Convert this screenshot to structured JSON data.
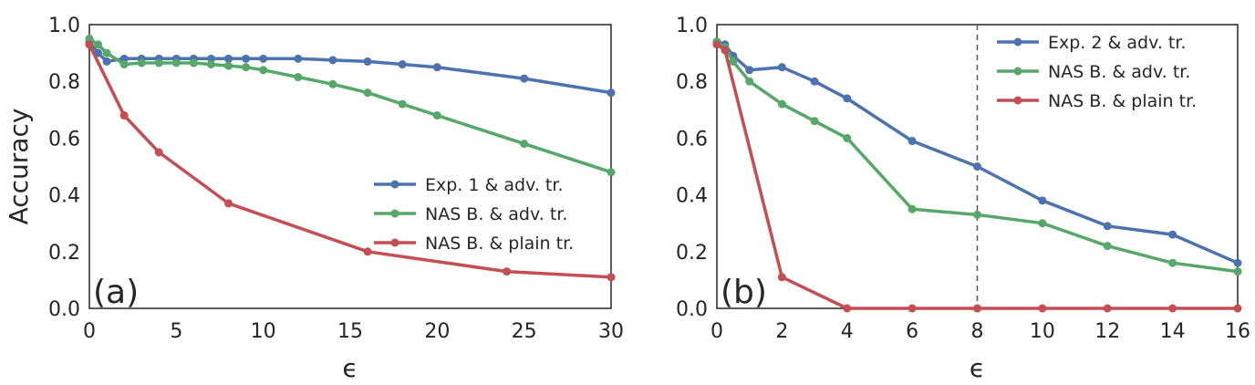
{
  "chart_data": [
    {
      "type": "line",
      "panel_label": "(a)",
      "xlabel": "ϵ",
      "ylabel": "Accuracy",
      "xlim": [
        0,
        30
      ],
      "ylim": [
        0,
        1
      ],
      "xticks": [
        0,
        5,
        10,
        15,
        20,
        25,
        30
      ],
      "yticks": [
        "0.0",
        "0.2",
        "0.4",
        "0.6",
        "0.8",
        "1.0"
      ],
      "legend_position": "center-right",
      "series": [
        {
          "name": "Exp. 1 & adv. tr.",
          "color": "#4c72b0",
          "x": [
            0,
            0.5,
            1,
            2,
            3,
            4,
            5,
            6,
            7,
            8,
            9,
            10,
            12,
            14,
            16,
            18,
            20,
            25,
            30
          ],
          "y": [
            0.94,
            0.9,
            0.87,
            0.88,
            0.88,
            0.88,
            0.88,
            0.88,
            0.88,
            0.88,
            0.88,
            0.88,
            0.88,
            0.875,
            0.87,
            0.86,
            0.85,
            0.81,
            0.76
          ]
        },
        {
          "name": "NAS B. & adv. tr.",
          "color": "#55a868",
          "x": [
            0,
            0.5,
            1,
            2,
            3,
            4,
            5,
            6,
            7,
            8,
            9,
            10,
            12,
            14,
            16,
            18,
            20,
            25,
            30
          ],
          "y": [
            0.95,
            0.93,
            0.9,
            0.86,
            0.865,
            0.865,
            0.865,
            0.865,
            0.86,
            0.855,
            0.85,
            0.84,
            0.815,
            0.79,
            0.76,
            0.72,
            0.68,
            0.58,
            0.48
          ]
        },
        {
          "name": "NAS B. & plain tr.",
          "color": "#c44e52",
          "x": [
            0,
            2,
            4,
            8,
            16,
            24,
            30
          ],
          "y": [
            0.93,
            0.68,
            0.55,
            0.37,
            0.2,
            0.13,
            0.11
          ]
        }
      ]
    },
    {
      "type": "line",
      "panel_label": "(b)",
      "xlabel": "ϵ",
      "ylabel": "",
      "xlim": [
        0,
        16
      ],
      "ylim": [
        0,
        1
      ],
      "xticks": [
        0,
        2,
        4,
        6,
        8,
        10,
        12,
        14,
        16
      ],
      "yticks": [
        "0.0",
        "0.2",
        "0.4",
        "0.6",
        "0.8",
        "1.0"
      ],
      "vline_x": 8,
      "legend_position": "top-right",
      "series": [
        {
          "name": "Exp. 2 & adv. tr.",
          "color": "#4c72b0",
          "x": [
            0,
            0.25,
            0.5,
            1,
            2,
            3,
            4,
            6,
            8,
            10,
            12,
            14,
            16
          ],
          "y": [
            0.94,
            0.93,
            0.89,
            0.84,
            0.85,
            0.8,
            0.74,
            0.59,
            0.5,
            0.38,
            0.29,
            0.26,
            0.16
          ]
        },
        {
          "name": "NAS B. & adv. tr.",
          "color": "#55a868",
          "x": [
            0,
            0.25,
            0.5,
            1,
            2,
            3,
            4,
            6,
            8,
            10,
            12,
            14,
            16
          ],
          "y": [
            0.94,
            0.92,
            0.87,
            0.8,
            0.72,
            0.66,
            0.6,
            0.35,
            0.33,
            0.3,
            0.22,
            0.16,
            0.13
          ]
        },
        {
          "name": "NAS B. & plain tr.",
          "color": "#c44e52",
          "x": [
            0,
            0.25,
            2,
            4,
            6,
            8,
            10,
            12,
            14,
            16
          ],
          "y": [
            0.93,
            0.91,
            0.11,
            0.0,
            0.0,
            0.0,
            0.0,
            0.0,
            0.0,
            0.0
          ]
        }
      ]
    }
  ]
}
